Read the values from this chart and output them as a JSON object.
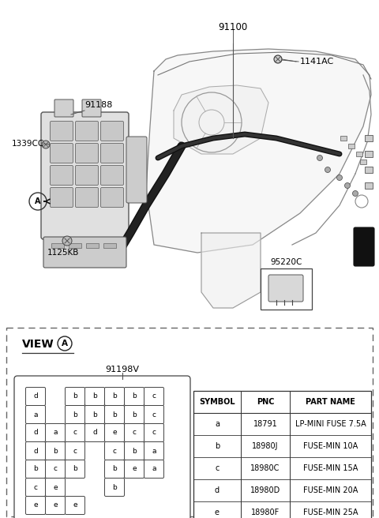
{
  "bg_color": "#ffffff",
  "fig_w": 4.8,
  "fig_h": 6.56,
  "dpi": 100,
  "table_headers": [
    "SYMBOL",
    "PNC",
    "PART NAME"
  ],
  "table_data": [
    [
      "a",
      "18791",
      "LP-MINI FUSE 7.5A"
    ],
    [
      "b",
      "18980J",
      "FUSE-MIN 10A"
    ],
    [
      "c",
      "18980C",
      "FUSE-MIN 15A"
    ],
    [
      "d",
      "18980D",
      "FUSE-MIN 20A"
    ],
    [
      "e",
      "18980F",
      "FUSE-MIN 25A"
    ]
  ],
  "fuse_cols": [
    [
      "d",
      "a",
      "d",
      "d",
      "b",
      "c",
      "e"
    ],
    [
      null,
      null,
      "a",
      "b",
      "c",
      "e",
      "e"
    ],
    [
      "b",
      "b",
      "c",
      "c",
      "b",
      null,
      "e"
    ],
    [
      "b",
      "b",
      "d",
      null,
      null,
      null,
      null
    ],
    [
      "b",
      "b",
      "e",
      "c",
      "b",
      "b",
      null
    ],
    [
      "b",
      "b",
      "c",
      "b",
      "e",
      null,
      null
    ],
    [
      "c",
      "c",
      "c",
      "a",
      "a",
      null,
      null
    ]
  ]
}
